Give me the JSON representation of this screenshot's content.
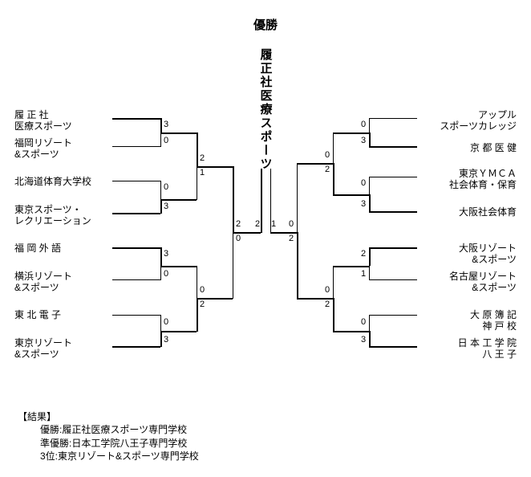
{
  "title": {
    "top": "優勝",
    "winner": "履正社医療スポーツ"
  },
  "teams": {
    "left": [
      "履 正 社\n医療スポーツ",
      "福岡リゾート\n&スポーツ",
      "北海道体育大学校",
      "東京スポーツ・\nレクリエーション",
      "福 岡 外 語",
      "横浜リゾート\n&スポーツ",
      "東 北 電 子",
      "東京リゾート\n&スポーツ"
    ],
    "right": [
      "アップル\nスポーツカレッジ",
      "京 都 医 健",
      "東京ＹＭＣＡ\n社会体育・保育",
      "大阪社会体育",
      "大阪リゾート\n&スポーツ",
      "名古屋リゾート\n&スポーツ",
      "大 原 簿 記\n神 戸 校",
      "日 本 工 学 院\n八 王 子"
    ]
  },
  "scores": {
    "left_r1": [
      [
        "3",
        "0"
      ],
      [
        "0",
        "3"
      ],
      [
        "3",
        "0"
      ],
      [
        "0",
        "3"
      ]
    ],
    "left_r2": [
      [
        "2",
        "1"
      ],
      [
        "0",
        "2"
      ]
    ],
    "left_r3": [
      "2",
      "0"
    ],
    "right_r1": [
      [
        "0",
        "3"
      ],
      [
        "0",
        "3"
      ],
      [
        "2",
        "1"
      ],
      [
        "0",
        "3"
      ]
    ],
    "right_r2": [
      [
        "0",
        "2"
      ],
      [
        "0",
        "2"
      ]
    ],
    "right_r3": [
      "0",
      "2"
    ],
    "final": [
      "2",
      "1"
    ]
  },
  "results": {
    "header": "【結果】",
    "lines": [
      "優勝:履正社医療スポーツ専門学校",
      "準優勝:日本工学院八王子専門学校",
      "3位:東京リゾート&スポーツ専門学校"
    ]
  }
}
